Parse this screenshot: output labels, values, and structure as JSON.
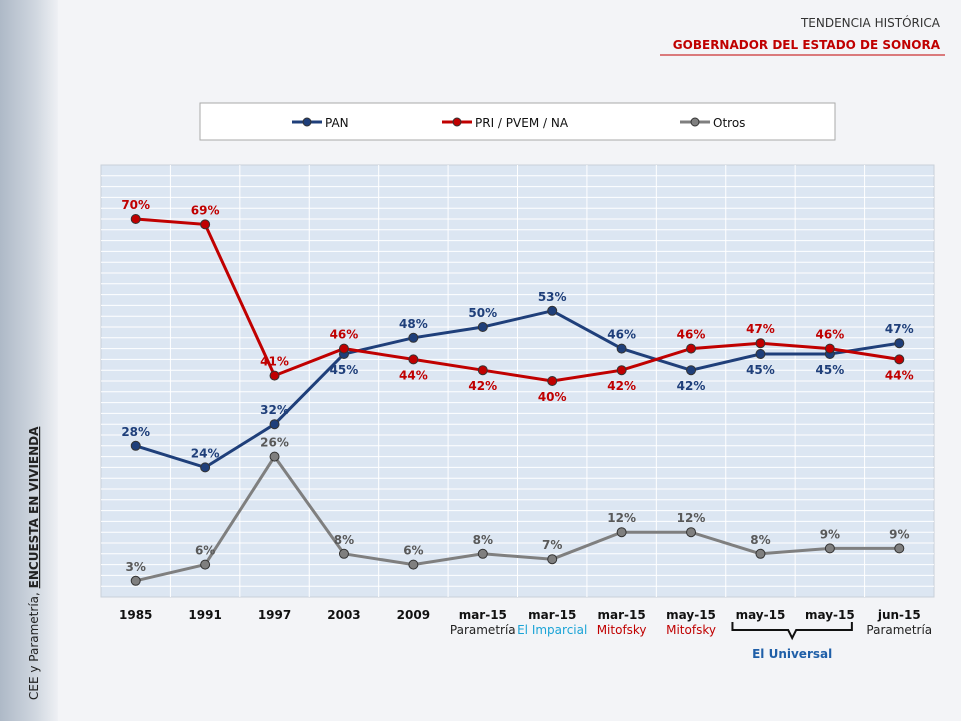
{
  "chart_data": {
    "type": "line",
    "title": "TENDENCIA HISTÓRICA",
    "subtitle": "GOBERNADOR DEL ESTADO DE SONORA",
    "side_note": {
      "source": "CEE y Parametría,",
      "survey": "ENCUESTA EN VIVIENDA"
    },
    "categories": [
      "1985",
      "1991",
      "1997",
      "2003",
      "2009",
      "mar-15",
      "mar-15",
      "mar-15",
      "may-15",
      "may-15",
      "may-15",
      "jun-15"
    ],
    "sublabels": [
      null,
      null,
      null,
      null,
      null,
      "Parametría",
      "El Imparcial",
      "Mitofsky",
      "Mitofsky",
      null,
      null,
      "Parametría"
    ],
    "sublabel_colors": [
      null,
      null,
      null,
      null,
      null,
      "#222222",
      "#1aa3d6",
      "#c00000",
      "#c00000",
      null,
      null,
      "#222222"
    ],
    "brackets": [
      {
        "label": "El Universal",
        "color": "#1f5fa8",
        "categories": [
          9,
          10
        ]
      }
    ],
    "ylim": [
      0,
      80
    ],
    "grid": true,
    "legend": "top",
    "series": [
      {
        "name": "PAN",
        "color": "#1f3f7a",
        "values": [
          28,
          24,
          32,
          45,
          48,
          50,
          53,
          46,
          42,
          45,
          45,
          47
        ],
        "value_labels": [
          "28%",
          "24%",
          "32%",
          "45%",
          "48%",
          "50%",
          "53%",
          "46%",
          "42%",
          "45%",
          "45%",
          "47%"
        ]
      },
      {
        "name": "PRI / PVEM / NA",
        "color": "#c00000",
        "values": [
          70,
          69,
          41,
          46,
          44,
          42,
          40,
          42,
          46,
          47,
          46,
          44
        ],
        "value_labels": [
          "70%",
          "69%",
          "41%",
          "46%",
          "44%",
          "42%",
          "40%",
          "42%",
          "46%",
          "47%",
          "46%",
          "44%"
        ]
      },
      {
        "name": "Otros",
        "color": "#7f7f7f",
        "label_color": "#595959",
        "values": [
          3,
          6,
          26,
          8,
          6,
          8,
          7,
          12,
          12,
          8,
          9,
          9
        ],
        "value_labels": [
          "3%",
          "6%",
          "26%",
          "8%",
          "6%",
          "8%",
          "7%",
          "12%",
          "12%",
          "8%",
          "9%",
          "9%"
        ]
      }
    ]
  }
}
